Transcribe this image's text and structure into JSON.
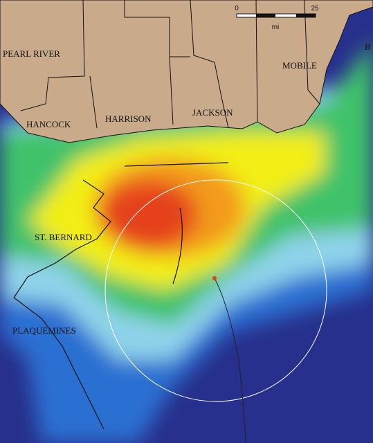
{
  "places": [
    "PEARL RIVER",
    "HANCOCK",
    "HARRISON",
    "JACKSON",
    "MOBILE",
    "B",
    "ST. BERNARD",
    "PLAQUEMINES"
  ],
  "scale": {
    "start": 0,
    "end": 25,
    "unit": "mi"
  }
}
